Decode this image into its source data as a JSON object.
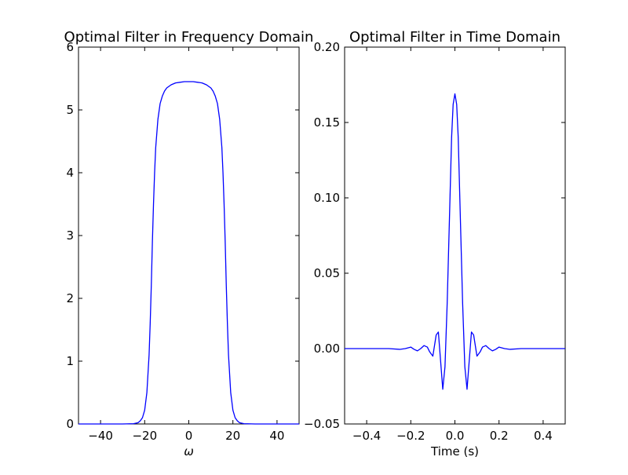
{
  "chart_data": [
    {
      "type": "line",
      "title": "Optimal Filter in Frequency Domain",
      "xlabel": "ω",
      "ylabel": "",
      "xlim": [
        -50,
        50
      ],
      "ylim": [
        0,
        6
      ],
      "xticks": [
        -40,
        -20,
        0,
        20,
        40
      ],
      "xtick_labels": [
        "−40",
        "−20",
        "0",
        "20",
        "40"
      ],
      "yticks": [
        0,
        1,
        2,
        3,
        4,
        5,
        6
      ],
      "ytick_labels": [
        "0",
        "1",
        "2",
        "3",
        "4",
        "5",
        "6"
      ],
      "grid": false,
      "color": "#0000ff",
      "series": [
        {
          "x": [
            -50,
            -30,
            -25,
            -23,
            -22,
            -21,
            -20,
            -19,
            -18,
            -17.5,
            -17,
            -16.5,
            -16,
            -15.5,
            -15,
            -14,
            -13,
            -12,
            -11,
            -10,
            -8,
            -6,
            -4,
            -2,
            0,
            2,
            4,
            6,
            8,
            10,
            11,
            12,
            13,
            14,
            15,
            15.5,
            16,
            16.5,
            17,
            17.5,
            18,
            19,
            20,
            21,
            22,
            23,
            25,
            30,
            50
          ],
          "y": [
            0,
            0,
            0.005,
            0.02,
            0.05,
            0.1,
            0.22,
            0.5,
            1.1,
            1.6,
            2.2,
            2.9,
            3.5,
            4.0,
            4.4,
            4.85,
            5.1,
            5.22,
            5.3,
            5.35,
            5.4,
            5.43,
            5.44,
            5.45,
            5.45,
            5.45,
            5.44,
            5.43,
            5.4,
            5.35,
            5.3,
            5.22,
            5.1,
            4.85,
            4.4,
            4.0,
            3.5,
            2.9,
            2.2,
            1.6,
            1.1,
            0.5,
            0.22,
            0.1,
            0.05,
            0.02,
            0.005,
            0,
            0
          ]
        }
      ]
    },
    {
      "type": "line",
      "title": "Optimal Filter in Time Domain",
      "xlabel": "Time (s)",
      "ylabel": "",
      "xlim": [
        -0.5,
        0.5
      ],
      "ylim": [
        -0.05,
        0.2
      ],
      "xticks": [
        -0.4,
        -0.2,
        0.0,
        0.2,
        0.4
      ],
      "xtick_labels": [
        "−0.4",
        "−0.2",
        "0.0",
        "0.2",
        "0.4"
      ],
      "yticks": [
        -0.05,
        0.0,
        0.05,
        0.1,
        0.15,
        0.2
      ],
      "ytick_labels": [
        "−0.05",
        "0.00",
        "0.05",
        "0.10",
        "0.15",
        "0.20"
      ],
      "grid": false,
      "color": "#0000ff",
      "series": [
        {
          "x": [
            -0.5,
            -0.3,
            -0.25,
            -0.225,
            -0.2,
            -0.185,
            -0.17,
            -0.155,
            -0.14,
            -0.125,
            -0.115,
            -0.1,
            -0.085,
            -0.075,
            -0.065,
            -0.055,
            -0.045,
            -0.035,
            -0.025,
            -0.015,
            -0.008,
            0.0,
            0.008,
            0.015,
            0.025,
            0.035,
            0.045,
            0.055,
            0.065,
            0.075,
            0.085,
            0.1,
            0.115,
            0.125,
            0.14,
            0.155,
            0.17,
            0.185,
            0.2,
            0.225,
            0.25,
            0.3,
            0.5
          ],
          "y": [
            0.0,
            0.0,
            -0.0005,
            0.0,
            0.001,
            -0.0005,
            -0.0015,
            0.0,
            0.002,
            0.001,
            -0.002,
            -0.005,
            0.009,
            0.011,
            -0.008,
            -0.027,
            -0.012,
            0.03,
            0.085,
            0.14,
            0.162,
            0.169,
            0.162,
            0.14,
            0.085,
            0.03,
            -0.012,
            -0.027,
            -0.008,
            0.011,
            0.009,
            -0.005,
            -0.002,
            0.001,
            0.002,
            0.0,
            -0.0015,
            -0.0005,
            0.001,
            0.0,
            -0.0005,
            0.0,
            0.0
          ]
        }
      ]
    }
  ]
}
